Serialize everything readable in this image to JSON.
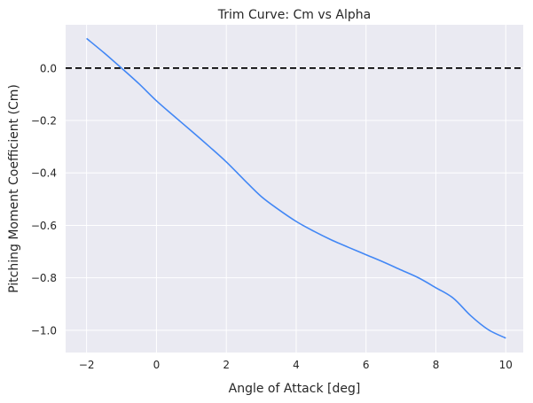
{
  "chart_data": {
    "type": "line",
    "title": "Trim Curve: Cm vs Alpha",
    "xlabel": "Angle of Attack [deg]",
    "ylabel": "Pitching Moment Coefficient (Cm)",
    "xlim": [
      -2.6,
      10.5
    ],
    "ylim": [
      -1.085,
      0.165
    ],
    "xticks": [
      -2,
      0,
      2,
      4,
      6,
      8,
      10
    ],
    "xtick_labels": [
      "−2",
      "0",
      "2",
      "4",
      "6",
      "8",
      "10"
    ],
    "yticks": [
      0.0,
      -0.2,
      -0.4,
      -0.6,
      -0.8,
      -1.0
    ],
    "ytick_labels": [
      "0.0",
      "−0.2",
      "−0.4",
      "−0.6",
      "−0.8",
      "−1.0"
    ],
    "grid": true,
    "style": {
      "background": "#eaeaf2",
      "grid_color": "#ffffff",
      "line_color": "#4287f5",
      "reference_line_color": "#000000"
    },
    "reference_line": {
      "y": 0.0,
      "style": "dashed"
    },
    "series": [
      {
        "x": [
          -2,
          -1.5,
          -1,
          -0.5,
          0,
          0.5,
          1,
          1.5,
          2,
          2.5,
          3,
          3.5,
          4,
          4.5,
          5,
          5.5,
          6,
          6.5,
          7,
          7.5,
          8,
          8.5,
          9,
          9.5,
          10
        ],
        "values": [
          0.113,
          0.058,
          0.0,
          -0.06,
          -0.125,
          -0.183,
          -0.24,
          -0.298,
          -0.358,
          -0.425,
          -0.49,
          -0.54,
          -0.585,
          -0.622,
          -0.655,
          -0.684,
          -0.712,
          -0.74,
          -0.77,
          -0.8,
          -0.838,
          -0.878,
          -0.945,
          -0.998,
          -1.03
        ]
      }
    ]
  }
}
